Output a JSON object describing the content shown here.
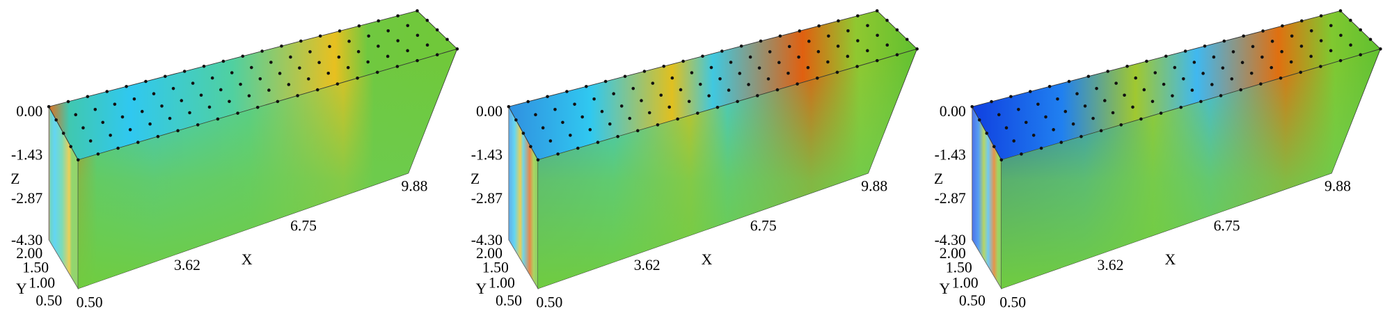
{
  "panels": [
    {
      "z_axis": {
        "label": "Z",
        "ticks": [
          "0.00",
          "-1.43",
          "-2.87",
          "-4.30"
        ]
      },
      "y_axis": {
        "label": "Y",
        "ticks": [
          "2.00",
          "1.50",
          "1.00",
          "0.50"
        ]
      },
      "x_axis": {
        "label": "X",
        "ticks": [
          "0.50",
          "3.62",
          "6.75",
          "9.88"
        ]
      }
    },
    {
      "z_axis": {
        "label": "Z",
        "ticks": [
          "0.00",
          "-1.43",
          "-2.87",
          "-4.30"
        ]
      },
      "y_axis": {
        "label": "Y",
        "ticks": [
          "2.00",
          "1.50",
          "1.00",
          "0.50"
        ]
      },
      "x_axis": {
        "label": "X",
        "ticks": [
          "0.50",
          "3.62",
          "6.75",
          "9.88"
        ]
      }
    },
    {
      "z_axis": {
        "label": "Z",
        "ticks": [
          "0.00",
          "-1.43",
          "-2.87",
          "-4.30"
        ]
      },
      "y_axis": {
        "label": "Y",
        "ticks": [
          "2.00",
          "1.50",
          "1.00",
          "0.50"
        ]
      },
      "x_axis": {
        "label": "X",
        "ticks": [
          "0.50",
          "3.62",
          "6.75",
          "9.88"
        ]
      }
    }
  ]
}
